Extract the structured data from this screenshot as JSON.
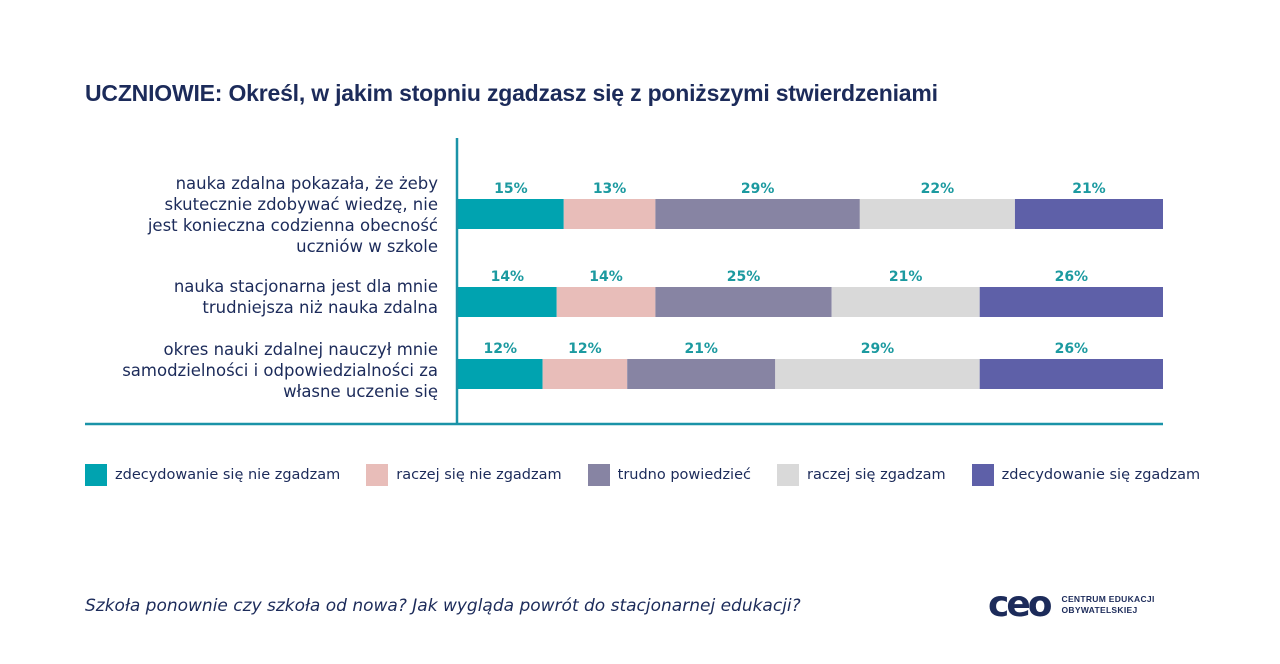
{
  "page": {
    "title": "UCZNIOWIE: Określ, w jakim stopniu zgadzasz się z poniższymi stwierdzeniami",
    "footer": "Szkoła ponownie czy szkoła od nowa? Jak wygląda powrót do stacjonarnej edukacji?",
    "logo": {
      "mark": "ceo",
      "line1": "CENTRUM EDUKACJI",
      "line2": "OBYWATELSKIEJ"
    }
  },
  "colors": {
    "axis": "#1a93a8",
    "label_text": "#1c9aa0",
    "navy": "#1c2b5a"
  },
  "chart_data": {
    "type": "bar",
    "orientation": "horizontal-stacked-100",
    "title": "UCZNIOWIE: Określ, w jakim stopniu zgadzasz się z poniższymi stwierdzeniami",
    "xlabel": "",
    "ylabel": "",
    "xlim": [
      0,
      100
    ],
    "unit": "%",
    "grid": false,
    "legend_position": "bottom",
    "categories": [
      "nauka zdalna pokazała, że żeby skutecznie zdobywać wiedzę, nie jest konieczna codzienna obecność uczniów w szkole",
      "nauka stacjonarna jest dla mnie trudniejsza niż nauka zdalna",
      "okres nauki zdalnej nauczył mnie samodzielności i odpowiedzialności za własne uczenie się"
    ],
    "category_lines": [
      [
        "nauka zdalna pokazała, że żeby",
        "skutecznie zdobywać wiedzę, nie",
        "jest konieczna codzienna obecność",
        "uczniów w szkole"
      ],
      [
        "nauka stacjonarna jest dla mnie",
        "trudniejsza niż nauka zdalna"
      ],
      [
        "okres nauki zdalnej nauczył mnie",
        "samodzielności i odpowiedzialności za",
        "własne uczenie się"
      ]
    ],
    "series": [
      {
        "name": "zdecydowanie się nie zgadzam",
        "color": "#00a3b0",
        "values": [
          15,
          14,
          12
        ]
      },
      {
        "name": "raczej się nie zgadzam",
        "color": "#e8bdb9",
        "values": [
          13,
          14,
          12
        ]
      },
      {
        "name": "trudno powiedzieć",
        "color": "#8784a3",
        "values": [
          29,
          25,
          21
        ]
      },
      {
        "name": "raczej się zgadzam",
        "color": "#d9d9d9",
        "values": [
          22,
          21,
          29
        ]
      },
      {
        "name": "zdecydowanie się zgadzam",
        "color": "#5e60a8",
        "values": [
          21,
          26,
          26
        ]
      }
    ]
  }
}
